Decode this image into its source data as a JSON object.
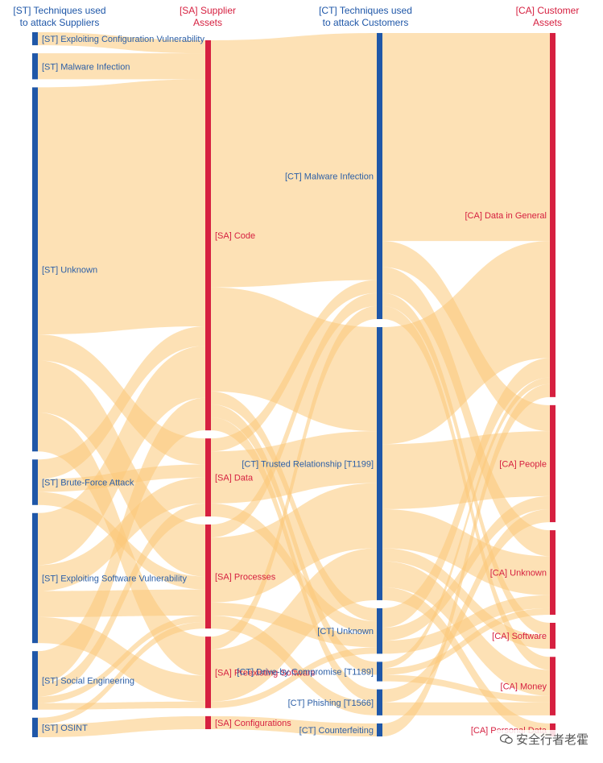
{
  "headers": {
    "st": "[ST] Techniques used\nto attack Suppliers",
    "sa": "[SA] Supplier\nAssets",
    "ct": "[CT] Techniques used\nto attack Customers",
    "ca": "[CA] Customer\nAssets"
  },
  "colors": {
    "technique": "#1f57a8",
    "technique_text": "#2c5fa6",
    "asset": "#d62040",
    "flow": "#fbc879"
  },
  "chart_data": {
    "type": "sankey",
    "columns": [
      {
        "id": "st",
        "nodes": [
          {
            "id": "st_ecv",
            "label": "[ST] Exploiting Configuration Vulnerability",
            "kind": "technique",
            "value": 1
          },
          {
            "id": "st_mal",
            "label": "[ST] Malware Infection",
            "kind": "technique",
            "value": 2
          },
          {
            "id": "st_unk",
            "label": "[ST] Unknown",
            "kind": "technique",
            "value": 28
          },
          {
            "id": "st_bfa",
            "label": "[ST] Brute-Force Attack",
            "kind": "technique",
            "value": 3.5
          },
          {
            "id": "st_esv",
            "label": "[ST] Exploiting Software Vulnerability",
            "kind": "technique",
            "value": 10
          },
          {
            "id": "st_se",
            "label": "[ST] Social Engineering",
            "kind": "technique",
            "value": 4.5
          },
          {
            "id": "st_osint",
            "label": "[ST] OSINT",
            "kind": "technique",
            "value": 1.5
          }
        ]
      },
      {
        "id": "sa",
        "nodes": [
          {
            "id": "sa_code",
            "label": "[SA] Code",
            "kind": "asset",
            "value": 30
          },
          {
            "id": "sa_data",
            "label": "[SA] Data",
            "kind": "asset",
            "value": 6
          },
          {
            "id": "sa_proc",
            "label": "[SA] Processes",
            "kind": "asset",
            "value": 8
          },
          {
            "id": "sa_pre",
            "label": "[SA] Preexisting Software",
            "kind": "asset",
            "value": 5.5
          },
          {
            "id": "sa_conf",
            "label": "[SA] Configurations",
            "kind": "asset",
            "value": 1
          }
        ]
      },
      {
        "id": "ct",
        "nodes": [
          {
            "id": "ct_mal",
            "label": "[CT] Malware Infection",
            "kind": "technique",
            "value": 22
          },
          {
            "id": "ct_trust",
            "label": "[CT] Trusted Relationship [T1199]",
            "kind": "technique",
            "value": 21
          },
          {
            "id": "ct_unk",
            "label": "[CT] Unknown",
            "kind": "technique",
            "value": 3.5
          },
          {
            "id": "ct_dbc",
            "label": "[CT] Drive-by Compromise [T1189]",
            "kind": "technique",
            "value": 1.5
          },
          {
            "id": "ct_phish",
            "label": "[CT] Phishing [T1566]",
            "kind": "technique",
            "value": 2
          },
          {
            "id": "ct_counter",
            "label": "[CT] Counterfeiting",
            "kind": "technique",
            "value": 1
          }
        ]
      },
      {
        "id": "ca",
        "nodes": [
          {
            "id": "ca_data",
            "label": "[CA] Data in General",
            "kind": "asset",
            "value": 28
          },
          {
            "id": "ca_people",
            "label": "[CA] People",
            "kind": "asset",
            "value": 9
          },
          {
            "id": "ca_unk",
            "label": "[CA] Unknown",
            "kind": "asset",
            "value": 6.5
          },
          {
            "id": "ca_soft",
            "label": "[CA] Software",
            "kind": "asset",
            "value": 2
          },
          {
            "id": "ca_money",
            "label": "[CA] Money",
            "kind": "asset",
            "value": 4.5
          },
          {
            "id": "ca_pers",
            "label": "[CA] Personal Data",
            "kind": "asset",
            "value": 1
          }
        ]
      }
    ],
    "links": [
      {
        "source": "st_ecv",
        "target": "sa_code",
        "value": 1
      },
      {
        "source": "st_mal",
        "target": "sa_code",
        "value": 2
      },
      {
        "source": "st_unk",
        "target": "sa_code",
        "value": 19
      },
      {
        "source": "st_unk",
        "target": "sa_data",
        "value": 2
      },
      {
        "source": "st_unk",
        "target": "sa_proc",
        "value": 4
      },
      {
        "source": "st_unk",
        "target": "sa_pre",
        "value": 3
      },
      {
        "source": "st_bfa",
        "target": "sa_code",
        "value": 1.5
      },
      {
        "source": "st_bfa",
        "target": "sa_data",
        "value": 1
      },
      {
        "source": "st_bfa",
        "target": "sa_proc",
        "value": 1
      },
      {
        "source": "st_esv",
        "target": "sa_code",
        "value": 4
      },
      {
        "source": "st_esv",
        "target": "sa_data",
        "value": 2
      },
      {
        "source": "st_esv",
        "target": "sa_proc",
        "value": 2
      },
      {
        "source": "st_esv",
        "target": "sa_pre",
        "value": 2
      },
      {
        "source": "st_se",
        "target": "sa_code",
        "value": 2.5
      },
      {
        "source": "st_se",
        "target": "sa_data",
        "value": 1
      },
      {
        "source": "st_se",
        "target": "sa_proc",
        "value": 0.5
      },
      {
        "source": "st_se",
        "target": "sa_pre",
        "value": 0.5
      },
      {
        "source": "st_osint",
        "target": "sa_proc",
        "value": 0.5
      },
      {
        "source": "st_osint",
        "target": "sa_conf",
        "value": 1
      },
      {
        "source": "sa_code",
        "target": "ct_mal",
        "value": 19
      },
      {
        "source": "sa_code",
        "target": "ct_trust",
        "value": 8
      },
      {
        "source": "sa_code",
        "target": "ct_unk",
        "value": 1
      },
      {
        "source": "sa_code",
        "target": "ct_dbc",
        "value": 1
      },
      {
        "source": "sa_code",
        "target": "ct_phish",
        "value": 1
      },
      {
        "source": "sa_data",
        "target": "ct_mal",
        "value": 1
      },
      {
        "source": "sa_data",
        "target": "ct_trust",
        "value": 4
      },
      {
        "source": "sa_data",
        "target": "ct_unk",
        "value": 1
      },
      {
        "source": "sa_proc",
        "target": "ct_mal",
        "value": 1
      },
      {
        "source": "sa_proc",
        "target": "ct_trust",
        "value": 5
      },
      {
        "source": "sa_proc",
        "target": "ct_unk",
        "value": 1
      },
      {
        "source": "sa_proc",
        "target": "ct_phish",
        "value": 1
      },
      {
        "source": "sa_pre",
        "target": "ct_mal",
        "value": 1
      },
      {
        "source": "sa_pre",
        "target": "ct_trust",
        "value": 4
      },
      {
        "source": "sa_pre",
        "target": "ct_unk",
        "value": 0.5
      },
      {
        "source": "sa_conf",
        "target": "ct_counter",
        "value": 1
      },
      {
        "source": "ct_mal",
        "target": "ca_data",
        "value": 16
      },
      {
        "source": "ct_mal",
        "target": "ca_people",
        "value": 2
      },
      {
        "source": "ct_mal",
        "target": "ca_unk",
        "value": 2
      },
      {
        "source": "ct_mal",
        "target": "ca_soft",
        "value": 1
      },
      {
        "source": "ct_mal",
        "target": "ca_money",
        "value": 1
      },
      {
        "source": "ct_trust",
        "target": "ca_data",
        "value": 9
      },
      {
        "source": "ct_trust",
        "target": "ca_people",
        "value": 5
      },
      {
        "source": "ct_trust",
        "target": "ca_unk",
        "value": 3
      },
      {
        "source": "ct_trust",
        "target": "ca_soft",
        "value": 1
      },
      {
        "source": "ct_trust",
        "target": "ca_money",
        "value": 2
      },
      {
        "source": "ct_trust",
        "target": "ca_pers",
        "value": 1
      },
      {
        "source": "ct_unk",
        "target": "ca_data",
        "value": 1.5
      },
      {
        "source": "ct_unk",
        "target": "ca_people",
        "value": 1
      },
      {
        "source": "ct_unk",
        "target": "ca_unk",
        "value": 1
      },
      {
        "source": "ct_dbc",
        "target": "ca_data",
        "value": 0.5
      },
      {
        "source": "ct_dbc",
        "target": "ca_unk",
        "value": 0.5
      },
      {
        "source": "ct_dbc",
        "target": "ca_money",
        "value": 0.5
      },
      {
        "source": "ct_phish",
        "target": "ca_people",
        "value": 1
      },
      {
        "source": "ct_phish",
        "target": "ca_money",
        "value": 1
      },
      {
        "source": "ct_counter",
        "target": "ca_data",
        "value": 1
      }
    ]
  },
  "watermark": "安全行者老霍"
}
